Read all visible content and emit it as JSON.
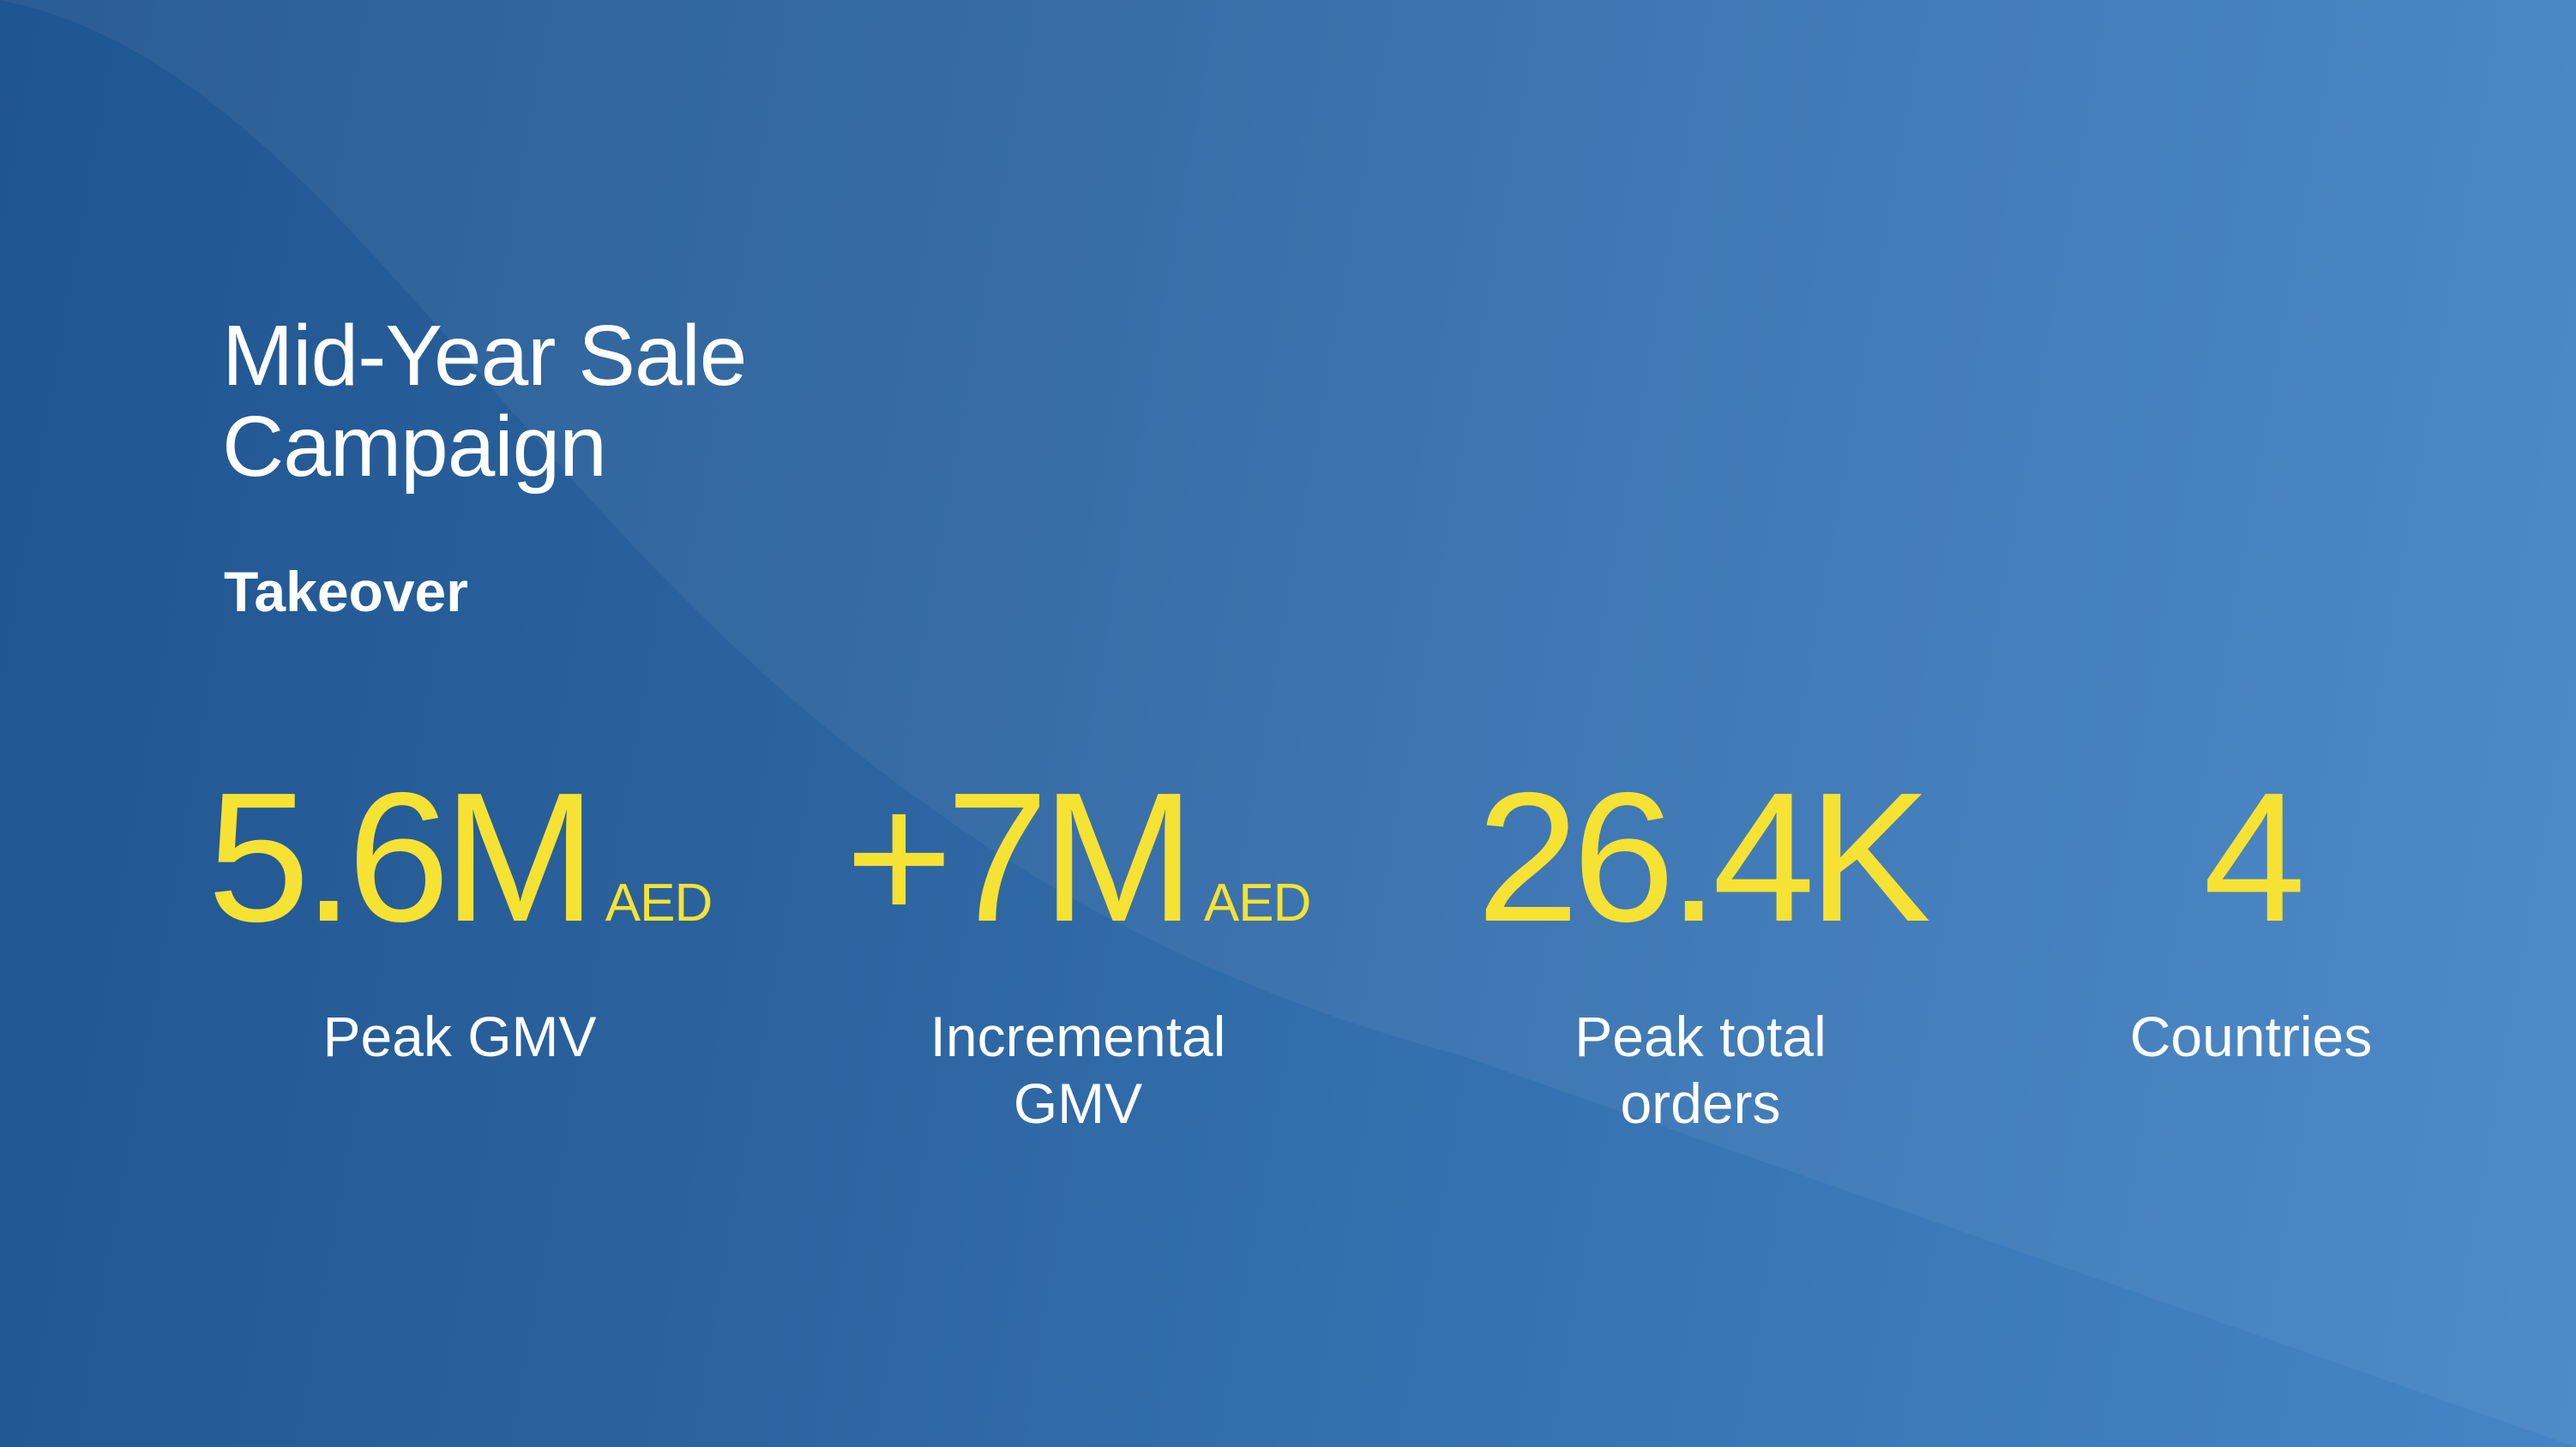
{
  "header": {
    "title": "Mid-Year Sale Campaign",
    "subtitle": "Takeover"
  },
  "stats": [
    {
      "value": "5.6M",
      "unit": "AED",
      "label": "Peak GMV"
    },
    {
      "value": "+7M",
      "unit": "AED",
      "label": "Incremental GMV"
    },
    {
      "value": "26.4K",
      "label": "Peak total orders"
    },
    {
      "value": "4",
      "label": "Countries"
    }
  ]
}
